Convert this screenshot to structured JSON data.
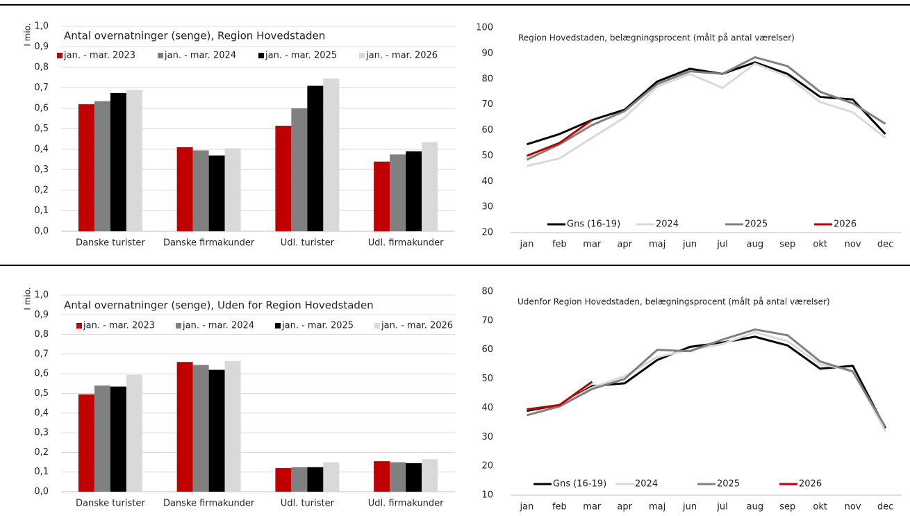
{
  "chart_data": [
    {
      "type": "bar",
      "title": "Antal overnatninger (senge), Region Hovedstaden",
      "ylabel": "I mio.",
      "categories": [
        "Danske turister",
        "Danske firmakunder",
        "Udl. turister",
        "Udl. firmakunder"
      ],
      "series": [
        {
          "name": "jan. - mar. 2023",
          "color": "#c00000",
          "values": [
            0.62,
            0.41,
            0.515,
            0.34
          ]
        },
        {
          "name": "jan. - mar. 2024",
          "color": "#808080",
          "values": [
            0.635,
            0.395,
            0.6,
            0.375
          ]
        },
        {
          "name": "jan. - mar. 2025",
          "color": "#000000",
          "values": [
            0.675,
            0.37,
            0.71,
            0.39
          ]
        },
        {
          "name": "jan. - mar. 2026",
          "color": "#d9d9d9",
          "values": [
            0.69,
            0.405,
            0.745,
            0.435
          ]
        }
      ],
      "ylim": [
        0,
        1
      ],
      "yticks": [
        {
          "value": 0,
          "label": "0,0"
        },
        {
          "value": 0.1,
          "label": "0,1"
        },
        {
          "value": 0.2,
          "label": "0,2"
        },
        {
          "value": 0.3,
          "label": "0,3"
        },
        {
          "value": 0.4,
          "label": "0,4"
        },
        {
          "value": 0.5,
          "label": "0,5"
        },
        {
          "value": 0.6,
          "label": "0,6"
        },
        {
          "value": 0.7,
          "label": "0,7"
        },
        {
          "value": 0.8,
          "label": "0,8"
        },
        {
          "value": 0.9,
          "label": "0,9"
        },
        {
          "value": 1,
          "label": "1,0"
        }
      ],
      "grid": true
    },
    {
      "type": "line",
      "title": "Region Hovedstaden, belægningsprocent (målt på antal værelser)",
      "categories": [
        "jan",
        "feb",
        "mar",
        "apr",
        "maj",
        "jun",
        "jul",
        "aug",
        "sep",
        "okt",
        "nov",
        "dec"
      ],
      "series": [
        {
          "name": "Gns (16-19)",
          "color": "#000000",
          "values": [
            54.5,
            58.5,
            64,
            68,
            79,
            84,
            82,
            86.5,
            82,
            73,
            72,
            58.5
          ]
        },
        {
          "name": "2024",
          "color": "#d9d9d9",
          "values": [
            46,
            49,
            57,
            65,
            77,
            82,
            76.5,
            86,
            81,
            71,
            67,
            57
          ]
        },
        {
          "name": "2025",
          "color": "#808080",
          "values": [
            48.5,
            54.5,
            62,
            67.5,
            78,
            83,
            82,
            88.5,
            85,
            75,
            70.5,
            62.5
          ]
        },
        {
          "name": "2026",
          "color": "#c00000",
          "values": [
            50,
            55,
            64,
            null,
            null,
            null,
            null,
            null,
            null,
            null,
            null,
            null
          ]
        }
      ],
      "ylim": [
        20,
        100
      ],
      "yticks": [
        20,
        30,
        40,
        50,
        60,
        70,
        80,
        90,
        100
      ],
      "grid": false
    },
    {
      "type": "bar",
      "title": "Antal overnatninger (senge), Uden for Region Hovedstaden",
      "ylabel": "I mio.",
      "categories": [
        "Danske turister",
        "Danske firmakunder",
        "Udl. turister",
        "Udl. firmakunder"
      ],
      "series": [
        {
          "name": "jan. - mar. 2023",
          "color": "#c00000",
          "values": [
            0.495,
            0.66,
            0.12,
            0.155
          ]
        },
        {
          "name": "jan. - mar. 2024",
          "color": "#808080",
          "values": [
            0.54,
            0.645,
            0.125,
            0.15
          ]
        },
        {
          "name": "jan. - mar. 2025",
          "color": "#000000",
          "values": [
            0.535,
            0.62,
            0.125,
            0.145
          ]
        },
        {
          "name": "jan. - mar. 2026",
          "color": "#d9d9d9",
          "values": [
            0.595,
            0.665,
            0.15,
            0.165
          ]
        }
      ],
      "ylim": [
        0,
        1
      ],
      "yticks": [
        {
          "value": 0,
          "label": "0,0"
        },
        {
          "value": 0.1,
          "label": "0,1"
        },
        {
          "value": 0.2,
          "label": "0,2"
        },
        {
          "value": 0.3,
          "label": "0,3"
        },
        {
          "value": 0.4,
          "label": "0,4"
        },
        {
          "value": 0.5,
          "label": "0,5"
        },
        {
          "value": 0.6,
          "label": "0,6"
        },
        {
          "value": 0.7,
          "label": "0,7"
        },
        {
          "value": 0.8,
          "label": "0,8"
        },
        {
          "value": 0.9,
          "label": "0,9"
        },
        {
          "value": 1,
          "label": "1,0"
        }
      ],
      "grid": true
    },
    {
      "type": "line",
      "title": "Udenfor Region Hovedstaden, belægningsprocent (målt på antal værelser)",
      "categories": [
        "jan",
        "feb",
        "mar",
        "apr",
        "maj",
        "jun",
        "jul",
        "aug",
        "sep",
        "okt",
        "nov",
        "dec"
      ],
      "series": [
        {
          "name": "Gns (16-19)",
          "color": "#000000",
          "values": [
            39,
            41,
            47.5,
            48.5,
            56.5,
            61,
            62.5,
            64.5,
            61.5,
            53.5,
            54.5,
            33
          ]
        },
        {
          "name": "2024",
          "color": "#d9d9d9",
          "values": [
            39.5,
            41,
            47,
            51,
            57.5,
            60,
            62,
            66,
            63,
            55,
            53,
            32
          ]
        },
        {
          "name": "2025",
          "color": "#808080",
          "values": [
            37.5,
            40.5,
            46.5,
            50,
            60,
            59.5,
            63.5,
            67,
            65,
            56,
            52.5,
            33.5
          ]
        },
        {
          "name": "2026",
          "color": "#c00000",
          "values": [
            39.5,
            41,
            49,
            null,
            null,
            null,
            null,
            null,
            null,
            null,
            null,
            null
          ]
        }
      ],
      "ylim": [
        10,
        80
      ],
      "yticks": [
        10,
        20,
        30,
        40,
        50,
        60,
        70,
        80
      ],
      "grid": false
    }
  ]
}
